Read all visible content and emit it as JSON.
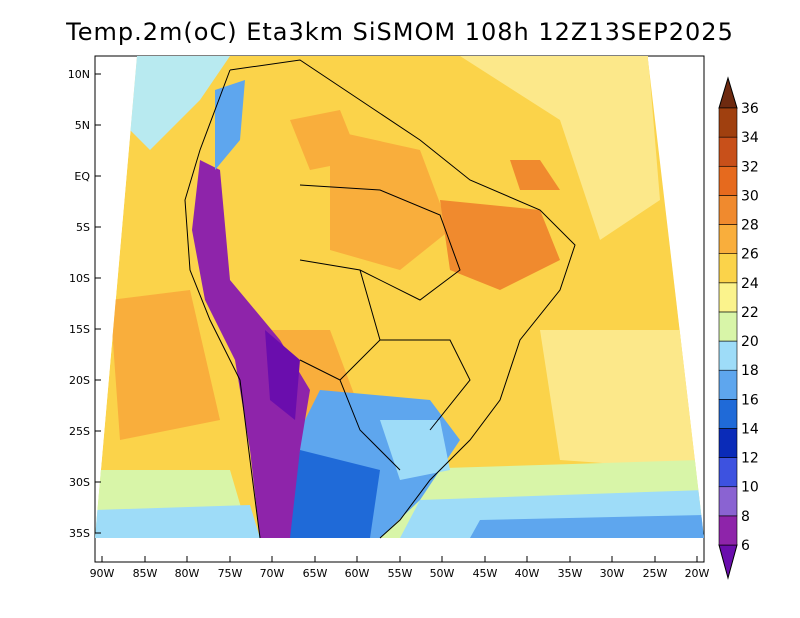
{
  "title": "Temp.2m(oC) Eta3km SiSMOM 108h 12Z13SEP2025",
  "lat_labels": [
    "10N",
    "5N",
    "EQ",
    "5S",
    "10S",
    "15S",
    "20S",
    "25S",
    "30S",
    "35S"
  ],
  "lon_labels": [
    "90W",
    "85W",
    "80W",
    "75W",
    "70W",
    "65W",
    "60W",
    "55W",
    "50W",
    "45W",
    "40W",
    "35W",
    "30W",
    "25W",
    "20W"
  ],
  "colorbar": {
    "values": [
      "6",
      "8",
      "10",
      "12",
      "14",
      "16",
      "18",
      "20",
      "22",
      "24",
      "26",
      "28",
      "30",
      "32",
      "34",
      "36"
    ],
    "colors": [
      "#6a0dad",
      "#8e24aa",
      "#8a63d2",
      "#3d52e0",
      "#0a2bb8",
      "#1f6ad8",
      "#5ea6ee",
      "#9edcf8",
      "#d8f5a8",
      "#fbf38c",
      "#fbd34a",
      "#f9ae3c",
      "#f08a2e",
      "#e66a1e",
      "#c8501a",
      "#a0400f",
      "#6e2a10"
    ]
  }
}
